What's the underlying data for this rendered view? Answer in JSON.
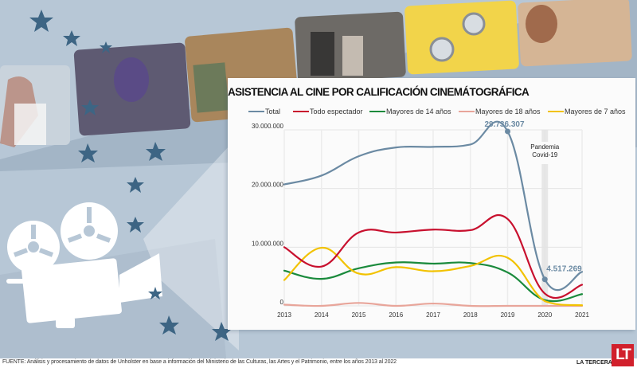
{
  "infographic": {
    "background_colors": {
      "base": "#b7c7d6",
      "film": "#9fb2c4",
      "star": "#3d6584",
      "projector": "#ffffff"
    },
    "photos": [
      "concert-singer",
      "superhero-villain",
      "crowd-scene",
      "horror-couple",
      "minions",
      "car-driver"
    ]
  },
  "chart_data": {
    "type": "line",
    "title": "ASISTENCIA AL CINE POR CALIFICACIÓN CINEMÁTOGRÁFICA",
    "xlabel": "",
    "ylabel": "",
    "x": [
      "2013",
      "2014",
      "2015",
      "2016",
      "2017",
      "2018",
      "2019",
      "2020",
      "2021"
    ],
    "ylim": [
      0,
      30000000
    ],
    "yticks": [
      0,
      10000000,
      20000000,
      30000000
    ],
    "ytick_labels": [
      "0",
      "10.000.000",
      "20.000.000",
      "30.000.000"
    ],
    "grid": true,
    "legend_position": "top",
    "series": [
      {
        "name": "Total",
        "color": "#6b8aa3",
        "values": [
          20700000,
          22200000,
          25500000,
          27000000,
          27100000,
          27500000,
          29736307,
          4517269,
          5800000
        ]
      },
      {
        "name": "Todo espectador",
        "color": "#c8102e",
        "values": [
          10000000,
          6700000,
          12500000,
          12500000,
          13000000,
          12900000,
          14800000,
          2100000,
          3600000
        ]
      },
      {
        "name": "Mayores de 14 años",
        "color": "#1a8a3c",
        "values": [
          6000000,
          4600000,
          6400000,
          7400000,
          7200000,
          7300000,
          5700000,
          1000000,
          2000000
        ]
      },
      {
        "name": "Mayores de 18 años",
        "color": "#e8a59a",
        "values": [
          200000,
          0,
          500000,
          0,
          400000,
          0,
          0,
          0,
          0
        ]
      },
      {
        "name": "Mayores de 7 años",
        "color": "#f2c200",
        "values": [
          4400000,
          9900000,
          5500000,
          6600000,
          5900000,
          6800000,
          8200000,
          800000,
          100000
        ]
      }
    ],
    "annotations": [
      {
        "text": "29.736.307",
        "x": "2019",
        "series": "Total",
        "value": 29736307
      },
      {
        "text": "4.517.269",
        "x": "2020",
        "series": "Total",
        "value": 4517269
      },
      {
        "text_lines": [
          "Pandemia",
          "Covid-19"
        ],
        "x": "2020"
      }
    ],
    "highlight_band": "2020"
  },
  "footer": {
    "source": "FUENTE: Análisis y procesamiento de datos de Unholster en base a información del Ministerio de las Culturas, las Artes y el Patrimonio, entre los años 2013 al 2022",
    "brand_name": "LA TERCERA",
    "brand_logo": "LT"
  }
}
